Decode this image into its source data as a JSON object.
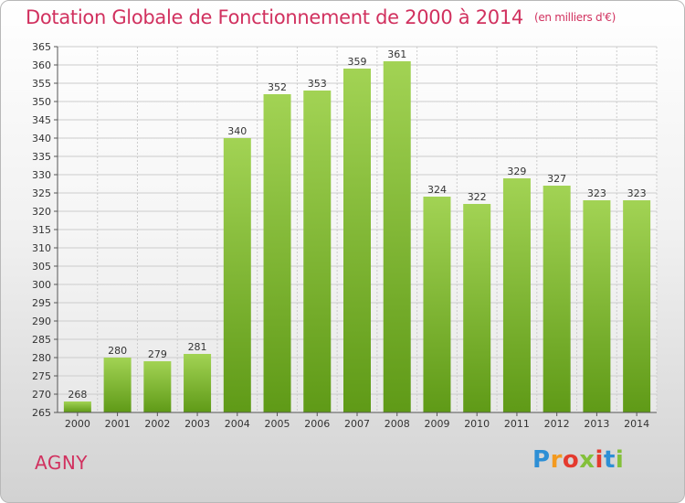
{
  "header": {
    "title": "Dotation Globale de Fonctionnement de 2000 à 2014",
    "unit": "(en milliers d'€)"
  },
  "footer": {
    "commune": "AGNY",
    "logo_text": "Proxiti"
  },
  "colors": {
    "title": "#d1315f",
    "bar_light": "#a2d354",
    "bar_dark": "#5f9a17",
    "grid": "#cccccc"
  },
  "chart_data": {
    "type": "bar",
    "title": "Dotation Globale de Fonctionnement de 2000 à 2014",
    "subtitle": "(en milliers d'€)",
    "xlabel": "",
    "ylabel": "",
    "categories": [
      "2000",
      "2001",
      "2002",
      "2003",
      "2004",
      "2005",
      "2006",
      "2007",
      "2008",
      "2009",
      "2010",
      "2011",
      "2012",
      "2013",
      "2014"
    ],
    "values": [
      268,
      280,
      279,
      281,
      340,
      352,
      353,
      359,
      361,
      324,
      322,
      329,
      327,
      323,
      323
    ],
    "ylim": [
      265,
      365
    ],
    "yticks": [
      265,
      270,
      275,
      280,
      285,
      290,
      295,
      300,
      305,
      310,
      315,
      320,
      325,
      330,
      335,
      340,
      345,
      350,
      355,
      360,
      365
    ],
    "grid": true,
    "legend": "none",
    "data_labels": true
  }
}
